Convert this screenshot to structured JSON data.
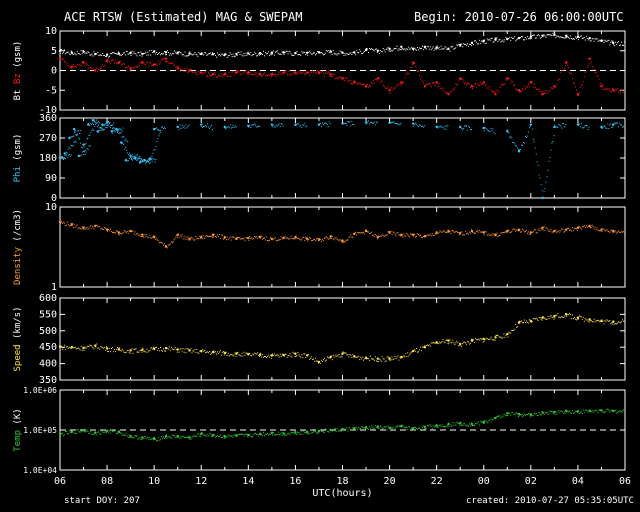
{
  "header": {
    "title": "ACE RTSW (Estimated) MAG & SWEPAM",
    "begin": "Begin: 2010-07-26 06:00:00UTC"
  },
  "footer": {
    "start_doy": "start DOY: 207",
    "created": "created: 2010-07-27 05:35:05UTC"
  },
  "colors": {
    "bt": "#ffffff",
    "bz": "#ff1a1a",
    "phi": "#33c8ff",
    "density": "#ff9a33",
    "speed": "#ffe64d",
    "temp": "#33cc33",
    "axes": "#ffffff",
    "background": "#000000"
  },
  "chart_data": [
    {
      "type": "scatter",
      "ylabel": "Bt Bz (gsm)",
      "ylabel_parts": [
        {
          "text": "Bt",
          "color": "#ffffff"
        },
        {
          "text": "Bz",
          "color": "#ff1a1a"
        },
        {
          "text": "(gsm)",
          "color": "#ffffff"
        }
      ],
      "ylim": [
        -10,
        10
      ],
      "yticks": [
        "10",
        "5",
        "0",
        "-5",
        "-10"
      ],
      "ytick_values": [
        10,
        5,
        0,
        -5,
        -10
      ],
      "dashed_zero": true,
      "series": [
        {
          "name": "Bt",
          "color": "#ffffff",
          "x": [
            0,
            0.5,
            1,
            1.5,
            2,
            2.5,
            3,
            3.5,
            4,
            4.5,
            5,
            5.5,
            6,
            6.5,
            7,
            7.5,
            8,
            8.5,
            9,
            9.5,
            10,
            10.5,
            11,
            11.5,
            12,
            12.5,
            13,
            13.5,
            14,
            14.5,
            15,
            15.5,
            16,
            16.5,
            17,
            17.5,
            18,
            18.5,
            19,
            19.5,
            20,
            20.5,
            21,
            21.5,
            22,
            22.5,
            23,
            23.5
          ],
          "y": [
            5,
            4.5,
            4.8,
            4.2,
            4,
            4.3,
            4.5,
            4.2,
            4.8,
            4.6,
            4.5,
            4.3,
            4.2,
            4.1,
            4,
            4.2,
            4.3,
            4.4,
            4.5,
            4.6,
            4.4,
            4.5,
            4.6,
            4.8,
            4.5,
            4.6,
            5.2,
            5,
            5.5,
            6,
            5.5,
            6,
            5.8,
            5.5,
            6.5,
            7,
            7.5,
            7.8,
            8,
            8.2,
            8.5,
            8.8,
            9,
            8.8,
            8.5,
            8.2,
            7.5,
            7
          ]
        },
        {
          "name": "Bz",
          "color": "#ff1a1a",
          "x": [
            0,
            0.5,
            1,
            1.5,
            2,
            2.5,
            3,
            3.5,
            4,
            4.5,
            5,
            5.5,
            6,
            6.5,
            7,
            7.5,
            8,
            8.5,
            9,
            9.5,
            10,
            10.5,
            11,
            11.5,
            12,
            12.5,
            13,
            13.5,
            14,
            14.5,
            15,
            15.5,
            16,
            16.5,
            17,
            17.5,
            18,
            18.5,
            19,
            19.5,
            20,
            20.5,
            21,
            21.5,
            22,
            22.5,
            23,
            23.5
          ],
          "y": [
            3,
            1,
            2,
            0,
            2.5,
            2,
            0.5,
            2,
            1.5,
            3,
            0.5,
            0,
            -0.5,
            -1,
            -1,
            -0.5,
            -0.5,
            -1,
            -1,
            -0.5,
            -0.5,
            -0.5,
            -0.5,
            -1,
            -2,
            -3,
            -4,
            -2,
            -5,
            -3,
            2,
            -4,
            -3,
            -6,
            -2,
            -4,
            -3,
            -6,
            -2,
            -5,
            -3,
            -6,
            -4,
            2,
            -6,
            3,
            -4,
            -5
          ]
        }
      ]
    },
    {
      "type": "scatter",
      "ylabel": "Phi (gsm)",
      "ylabel_parts": [
        {
          "text": "Phi",
          "color": "#33c8ff"
        },
        {
          "text": "(gsm)",
          "color": "#ffffff"
        }
      ],
      "ylim": [
        0,
        360
      ],
      "yticks": [
        "360",
        "270",
        "180",
        "90",
        "0"
      ],
      "ytick_values": [
        360,
        270,
        180,
        90,
        0
      ],
      "series": [
        {
          "name": "Phi",
          "color": "#33c8ff",
          "x": [
            0,
            0.2,
            0.4,
            0.6,
            0.8,
            1,
            1.2,
            1.4,
            1.6,
            1.8,
            2,
            2.2,
            2.4,
            2.6,
            2.8,
            3,
            3.2,
            3.4,
            3.6,
            3.8,
            4,
            5,
            6,
            7,
            8,
            9,
            10,
            11,
            12,
            13,
            14,
            15,
            16,
            17,
            18,
            19,
            19.5,
            20,
            20.5,
            21,
            22,
            23,
            23.5
          ],
          "y": [
            180,
            200,
            270,
            310,
            190,
            240,
            330,
            350,
            300,
            330,
            340,
            300,
            310,
            250,
            170,
            190,
            180,
            160,
            170,
            175,
            310,
            320,
            330,
            320,
            325,
            330,
            330,
            330,
            335,
            340,
            338,
            335,
            320,
            320,
            315,
            300,
            210,
            330,
            0,
            320,
            330,
            320,
            330
          ]
        }
      ]
    },
    {
      "type": "scatter",
      "ylabel": "Density (/cm3)",
      "ylabel_parts": [
        {
          "text": "Density",
          "color": "#ff9a33"
        },
        {
          "text": "(/cm3)",
          "color": "#ffffff"
        }
      ],
      "ylim": [
        1,
        10
      ],
      "yscale": "log",
      "yticks": [
        "10",
        "1"
      ],
      "ytick_values": [
        10,
        1
      ],
      "series": [
        {
          "name": "Density",
          "color": "#ff9a33",
          "x": [
            0,
            0.5,
            1,
            1.5,
            2,
            2.5,
            3,
            3.5,
            4,
            4.5,
            5,
            5.5,
            6,
            6.5,
            7,
            7.5,
            8,
            8.5,
            9,
            9.5,
            10,
            10.5,
            11,
            11.5,
            12,
            12.5,
            13,
            13.5,
            14,
            14.5,
            15,
            15.5,
            16,
            16.5,
            17,
            17.5,
            18,
            18.5,
            19,
            19.5,
            20,
            20.5,
            21,
            21.5,
            22,
            22.5,
            23,
            23.5
          ],
          "y": [
            6.5,
            6,
            5.5,
            5.8,
            5.2,
            4.8,
            5,
            4.5,
            4.2,
            3.2,
            4.5,
            4,
            4.2,
            4.5,
            4.2,
            4,
            4.1,
            4.2,
            4,
            4.1,
            4.2,
            4,
            3.9,
            4.3,
            3.8,
            4.6,
            5,
            4.2,
            4.8,
            4.5,
            4.5,
            4.3,
            4.8,
            5,
            4.7,
            5,
            4.8,
            4.5,
            5,
            5.2,
            4.8,
            5.5,
            5,
            5.2,
            5.5,
            5.8,
            5.2,
            5
          ]
        }
      ]
    },
    {
      "type": "scatter",
      "ylabel": "Speed (km/s)",
      "ylabel_parts": [
        {
          "text": "Speed",
          "color": "#ffe64d"
        },
        {
          "text": "(km/s)",
          "color": "#ffffff"
        }
      ],
      "ylim": [
        350,
        600
      ],
      "yticks": [
        "600",
        "550",
        "500",
        "450",
        "400",
        "350"
      ],
      "ytick_values": [
        600,
        550,
        500,
        450,
        400,
        350
      ],
      "series": [
        {
          "name": "Speed",
          "color": "#ffe64d",
          "x": [
            0,
            0.5,
            1,
            1.5,
            2,
            2.5,
            3,
            3.5,
            4,
            4.5,
            5,
            5.5,
            6,
            6.5,
            7,
            7.5,
            8,
            8.5,
            9,
            9.5,
            10,
            10.5,
            11,
            11.5,
            12,
            12.5,
            13,
            13.5,
            14,
            14.5,
            15,
            15.5,
            16,
            16.5,
            17,
            17.5,
            18,
            18.5,
            19,
            19.5,
            20,
            20.5,
            21,
            21.5,
            22,
            22.5,
            23,
            23.5
          ],
          "y": [
            452,
            450,
            448,
            455,
            446,
            443,
            440,
            442,
            445,
            447,
            443,
            440,
            438,
            435,
            433,
            430,
            428,
            427,
            425,
            426,
            430,
            425,
            405,
            420,
            430,
            422,
            418,
            415,
            416,
            420,
            438,
            450,
            465,
            470,
            460,
            470,
            475,
            480,
            490,
            525,
            530,
            540,
            545,
            550,
            540,
            535,
            530,
            528
          ]
        }
      ]
    },
    {
      "type": "scatter",
      "ylabel": "Temp (K)",
      "ylabel_parts": [
        {
          "text": "Temp",
          "color": "#33cc33"
        },
        {
          "text": "(K)",
          "color": "#ffffff"
        }
      ],
      "ylim": [
        10000,
        1000000
      ],
      "yscale": "log",
      "yticks": [
        "1.0E+06",
        "1.0E+05",
        "1.0E+04"
      ],
      "ytick_values": [
        1000000,
        100000,
        10000
      ],
      "dashed_ref": 100000,
      "series": [
        {
          "name": "Temp",
          "color": "#33cc33",
          "x": [
            0,
            0.5,
            1,
            1.5,
            2,
            2.5,
            3,
            3.5,
            4,
            4.5,
            5,
            5.5,
            6,
            6.5,
            7,
            7.5,
            8,
            8.5,
            9,
            9.5,
            10,
            10.5,
            11,
            11.5,
            12,
            12.5,
            13,
            13.5,
            14,
            14.5,
            15,
            15.5,
            16,
            16.5,
            17,
            17.5,
            18,
            18.5,
            19,
            19.5,
            20,
            20.5,
            21,
            21.5,
            22,
            22.5,
            23,
            23.5
          ],
          "y": [
            80000,
            90000,
            100000,
            85000,
            95000,
            90000,
            70000,
            65000,
            60000,
            70000,
            70000,
            65000,
            80000,
            75000,
            70000,
            72000,
            75000,
            80000,
            85000,
            82000,
            88000,
            90000,
            95000,
            100000,
            105000,
            110000,
            115000,
            120000,
            112000,
            125000,
            110000,
            120000,
            130000,
            140000,
            150000,
            140000,
            160000,
            200000,
            260000,
            250000,
            240000,
            270000,
            280000,
            300000,
            290000,
            300000,
            310000,
            300000
          ]
        }
      ]
    }
  ],
  "x_axis": {
    "label": "UTC(hours)",
    "tick_labels": [
      "06",
      "08",
      "10",
      "12",
      "14",
      "16",
      "18",
      "20",
      "22",
      "00",
      "02",
      "04",
      "06"
    ]
  }
}
